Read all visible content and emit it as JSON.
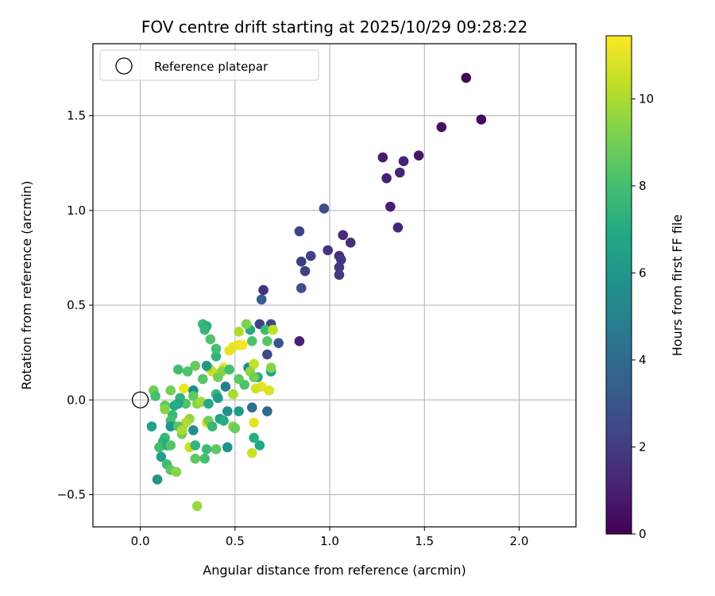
{
  "chart_data": {
    "type": "scatter",
    "title": "FOV centre drift starting at 2025/10/29 09:28:22",
    "xlabel": "Angular distance from reference (arcmin)",
    "ylabel": "Rotation from reference (arcmin)",
    "xlim": [
      -0.25,
      2.3
    ],
    "ylim": [
      -0.67,
      1.88
    ],
    "xticks": [
      0.0,
      0.5,
      1.0,
      1.5,
      2.0
    ],
    "xtick_labels": [
      "0.0",
      "0.5",
      "1.0",
      "1.5",
      "2.0"
    ],
    "yticks": [
      -0.5,
      0.0,
      0.5,
      1.0,
      1.5
    ],
    "ytick_labels": [
      "−0.5",
      "0.0",
      "0.5",
      "1.0",
      "1.5"
    ],
    "grid": true,
    "legend": {
      "position": "top-left",
      "entries": [
        "Reference platepar"
      ]
    },
    "reference_point": {
      "x": 0.0,
      "y": 0.0,
      "label": "Reference platepar"
    },
    "colorbar": {
      "label": "Hours from first FF file",
      "min": 0,
      "max": 11.45,
      "ticks": [
        0,
        2,
        4,
        6,
        8,
        10
      ],
      "tick_labels": [
        "0",
        "2",
        "4",
        "6",
        "8",
        "10"
      ],
      "colormap": "viridis"
    },
    "points": [
      {
        "x": 1.72,
        "y": 1.7,
        "h": 0.1
      },
      {
        "x": 1.8,
        "y": 1.48,
        "h": 0.3
      },
      {
        "x": 1.59,
        "y": 1.44,
        "h": 0.5
      },
      {
        "x": 1.47,
        "y": 1.29,
        "h": 0.7
      },
      {
        "x": 1.28,
        "y": 1.28,
        "h": 0.9
      },
      {
        "x": 1.3,
        "y": 1.17,
        "h": 1.0
      },
      {
        "x": 1.39,
        "y": 1.26,
        "h": 1.1
      },
      {
        "x": 1.37,
        "y": 1.2,
        "h": 1.3
      },
      {
        "x": 1.32,
        "y": 1.02,
        "h": 1.0
      },
      {
        "x": 1.36,
        "y": 0.91,
        "h": 1.2
      },
      {
        "x": 1.07,
        "y": 0.87,
        "h": 1.4
      },
      {
        "x": 1.11,
        "y": 0.83,
        "h": 1.5
      },
      {
        "x": 0.99,
        "y": 0.79,
        "h": 1.6
      },
      {
        "x": 1.05,
        "y": 0.76,
        "h": 1.5
      },
      {
        "x": 1.06,
        "y": 0.74,
        "h": 1.7
      },
      {
        "x": 1.05,
        "y": 0.7,
        "h": 1.8
      },
      {
        "x": 1.05,
        "y": 0.66,
        "h": 2.0
      },
      {
        "x": 0.84,
        "y": 0.89,
        "h": 2.2
      },
      {
        "x": 0.9,
        "y": 0.76,
        "h": 2.2
      },
      {
        "x": 0.85,
        "y": 0.73,
        "h": 2.0
      },
      {
        "x": 0.87,
        "y": 0.68,
        "h": 2.1
      },
      {
        "x": 0.97,
        "y": 1.01,
        "h": 2.7
      },
      {
        "x": 0.85,
        "y": 0.59,
        "h": 2.8
      },
      {
        "x": 0.65,
        "y": 0.58,
        "h": 1.6
      },
      {
        "x": 0.64,
        "y": 0.53,
        "h": 3.4
      },
      {
        "x": 0.84,
        "y": 0.31,
        "h": 1.0
      },
      {
        "x": 0.63,
        "y": 0.4,
        "h": 2.3
      },
      {
        "x": 0.69,
        "y": 0.4,
        "h": 2.5
      },
      {
        "x": 0.73,
        "y": 0.3,
        "h": 3.0
      },
      {
        "x": 0.67,
        "y": 0.24,
        "h": 2.6
      },
      {
        "x": 0.67,
        "y": -0.06,
        "h": 3.8
      },
      {
        "x": 0.59,
        "y": -0.04,
        "h": 4.2
      },
      {
        "x": 0.57,
        "y": 0.17,
        "h": 5.5
      },
      {
        "x": 0.69,
        "y": 0.15,
        "h": 6.6
      },
      {
        "x": 0.62,
        "y": 0.12,
        "h": 7.0
      },
      {
        "x": 0.58,
        "y": 0.37,
        "h": 7.0
      },
      {
        "x": 0.66,
        "y": 0.37,
        "h": 7.8
      },
      {
        "x": 0.67,
        "y": 0.31,
        "h": 8.4
      },
      {
        "x": 0.59,
        "y": 0.31,
        "h": 8.2
      },
      {
        "x": 0.56,
        "y": 0.4,
        "h": 9.2
      },
      {
        "x": 0.52,
        "y": 0.36,
        "h": 10.1
      },
      {
        "x": 0.7,
        "y": 0.37,
        "h": 10.3
      },
      {
        "x": 0.52,
        "y": 0.29,
        "h": 11.0
      },
      {
        "x": 0.49,
        "y": 0.28,
        "h": 11.1
      },
      {
        "x": 0.54,
        "y": 0.29,
        "h": 11.3
      },
      {
        "x": 0.47,
        "y": 0.26,
        "h": 11.0
      },
      {
        "x": 0.6,
        "y": 0.19,
        "h": 10.4
      },
      {
        "x": 0.58,
        "y": 0.15,
        "h": 9.6
      },
      {
        "x": 0.69,
        "y": 0.17,
        "h": 9.3
      },
      {
        "x": 0.6,
        "y": 0.12,
        "h": 9.0
      },
      {
        "x": 0.52,
        "y": 0.11,
        "h": 8.6
      },
      {
        "x": 0.55,
        "y": 0.08,
        "h": 8.2
      },
      {
        "x": 0.64,
        "y": 0.07,
        "h": 11.0
      },
      {
        "x": 0.61,
        "y": 0.06,
        "h": 10.7
      },
      {
        "x": 0.68,
        "y": 0.05,
        "h": 10.8
      },
      {
        "x": 0.49,
        "y": 0.03,
        "h": 10.0
      },
      {
        "x": 0.52,
        "y": -0.06,
        "h": 6.2
      },
      {
        "x": 0.46,
        "y": -0.06,
        "h": 5.6
      },
      {
        "x": 0.45,
        "y": 0.07,
        "h": 5.0
      },
      {
        "x": 0.49,
        "y": -0.14,
        "h": 9.5
      },
      {
        "x": 0.5,
        "y": -0.15,
        "h": 8.8
      },
      {
        "x": 0.6,
        "y": -0.12,
        "h": 11.0
      },
      {
        "x": 0.6,
        "y": -0.2,
        "h": 7.1
      },
      {
        "x": 0.63,
        "y": -0.24,
        "h": 6.8
      },
      {
        "x": 0.59,
        "y": -0.28,
        "h": 10.5
      },
      {
        "x": 0.46,
        "y": -0.25,
        "h": 5.8
      },
      {
        "x": 0.4,
        "y": -0.26,
        "h": 8.5
      },
      {
        "x": 0.35,
        "y": -0.26,
        "h": 7.8
      },
      {
        "x": 0.34,
        "y": -0.31,
        "h": 8.0
      },
      {
        "x": 0.29,
        "y": -0.31,
        "h": 8.6
      },
      {
        "x": 0.3,
        "y": -0.56,
        "h": 9.7
      },
      {
        "x": 0.44,
        "y": 0.17,
        "h": 10.9
      },
      {
        "x": 0.43,
        "y": 0.15,
        "h": 9.4
      },
      {
        "x": 0.47,
        "y": 0.16,
        "h": 8.0
      },
      {
        "x": 0.38,
        "y": 0.15,
        "h": 10.5
      },
      {
        "x": 0.36,
        "y": 0.17,
        "h": 10.0
      },
      {
        "x": 0.35,
        "y": 0.18,
        "h": 6.0
      },
      {
        "x": 0.33,
        "y": 0.11,
        "h": 8.4
      },
      {
        "x": 0.41,
        "y": 0.12,
        "h": 9.0
      },
      {
        "x": 0.4,
        "y": 0.23,
        "h": 7.4
      },
      {
        "x": 0.4,
        "y": 0.27,
        "h": 8.0
      },
      {
        "x": 0.37,
        "y": 0.32,
        "h": 8.3
      },
      {
        "x": 0.33,
        "y": 0.4,
        "h": 7.6
      },
      {
        "x": 0.35,
        "y": 0.39,
        "h": 7.2
      },
      {
        "x": 0.34,
        "y": 0.37,
        "h": 7.5
      },
      {
        "x": 0.29,
        "y": 0.18,
        "h": 8.7
      },
      {
        "x": 0.25,
        "y": 0.15,
        "h": 8.2
      },
      {
        "x": 0.2,
        "y": 0.16,
        "h": 7.9
      },
      {
        "x": 0.23,
        "y": 0.06,
        "h": 11.1
      },
      {
        "x": 0.28,
        "y": 0.05,
        "h": 5.6
      },
      {
        "x": 0.28,
        "y": 0.02,
        "h": 8.6
      },
      {
        "x": 0.3,
        "y": -0.02,
        "h": 9.3
      },
      {
        "x": 0.32,
        "y": -0.01,
        "h": 9.8
      },
      {
        "x": 0.36,
        "y": -0.02,
        "h": 6.9
      },
      {
        "x": 0.4,
        "y": 0.03,
        "h": 7.6
      },
      {
        "x": 0.41,
        "y": 0.01,
        "h": 6.2
      },
      {
        "x": 0.42,
        "y": -0.1,
        "h": 6.5
      },
      {
        "x": 0.44,
        "y": -0.11,
        "h": 7.0
      },
      {
        "x": 0.35,
        "y": -0.12,
        "h": 11.0
      },
      {
        "x": 0.36,
        "y": -0.11,
        "h": 9.0
      },
      {
        "x": 0.38,
        "y": -0.14,
        "h": 7.6
      },
      {
        "x": 0.26,
        "y": -0.1,
        "h": 9.6
      },
      {
        "x": 0.24,
        "y": -0.12,
        "h": 10.1
      },
      {
        "x": 0.28,
        "y": -0.16,
        "h": 5.5
      },
      {
        "x": 0.26,
        "y": -0.25,
        "h": 10.5
      },
      {
        "x": 0.29,
        "y": -0.24,
        "h": 7.5
      },
      {
        "x": 0.24,
        "y": -0.02,
        "h": 8.2
      },
      {
        "x": 0.21,
        "y": 0.01,
        "h": 7.3
      },
      {
        "x": 0.2,
        "y": -0.02,
        "h": 6.7
      },
      {
        "x": 0.18,
        "y": -0.03,
        "h": 7.0
      },
      {
        "x": 0.17,
        "y": -0.08,
        "h": 7.7
      },
      {
        "x": 0.16,
        "y": -0.11,
        "h": 8.1
      },
      {
        "x": 0.16,
        "y": 0.05,
        "h": 9.0
      },
      {
        "x": 0.13,
        "y": -0.03,
        "h": 8.5
      },
      {
        "x": 0.13,
        "y": -0.05,
        "h": 9.4
      },
      {
        "x": 0.07,
        "y": 0.05,
        "h": 9.0
      },
      {
        "x": 0.08,
        "y": 0.02,
        "h": 8.0
      },
      {
        "x": 0.06,
        "y": -0.14,
        "h": 6.5
      },
      {
        "x": 0.16,
        "y": -0.14,
        "h": 6.0
      },
      {
        "x": 0.2,
        "y": -0.14,
        "h": 8.4
      },
      {
        "x": 0.22,
        "y": -0.18,
        "h": 9.0
      },
      {
        "x": 0.22,
        "y": -0.16,
        "h": 10.0
      },
      {
        "x": 0.13,
        "y": -0.2,
        "h": 7.7
      },
      {
        "x": 0.12,
        "y": -0.22,
        "h": 7.3
      },
      {
        "x": 0.1,
        "y": -0.25,
        "h": 8.0
      },
      {
        "x": 0.14,
        "y": -0.24,
        "h": 7.0
      },
      {
        "x": 0.16,
        "y": -0.24,
        "h": 8.4
      },
      {
        "x": 0.11,
        "y": -0.3,
        "h": 6.4
      },
      {
        "x": 0.14,
        "y": -0.34,
        "h": 7.9
      },
      {
        "x": 0.16,
        "y": -0.37,
        "h": 8.5
      },
      {
        "x": 0.19,
        "y": -0.38,
        "h": 9.4
      },
      {
        "x": 0.09,
        "y": -0.42,
        "h": 6.0
      }
    ]
  }
}
